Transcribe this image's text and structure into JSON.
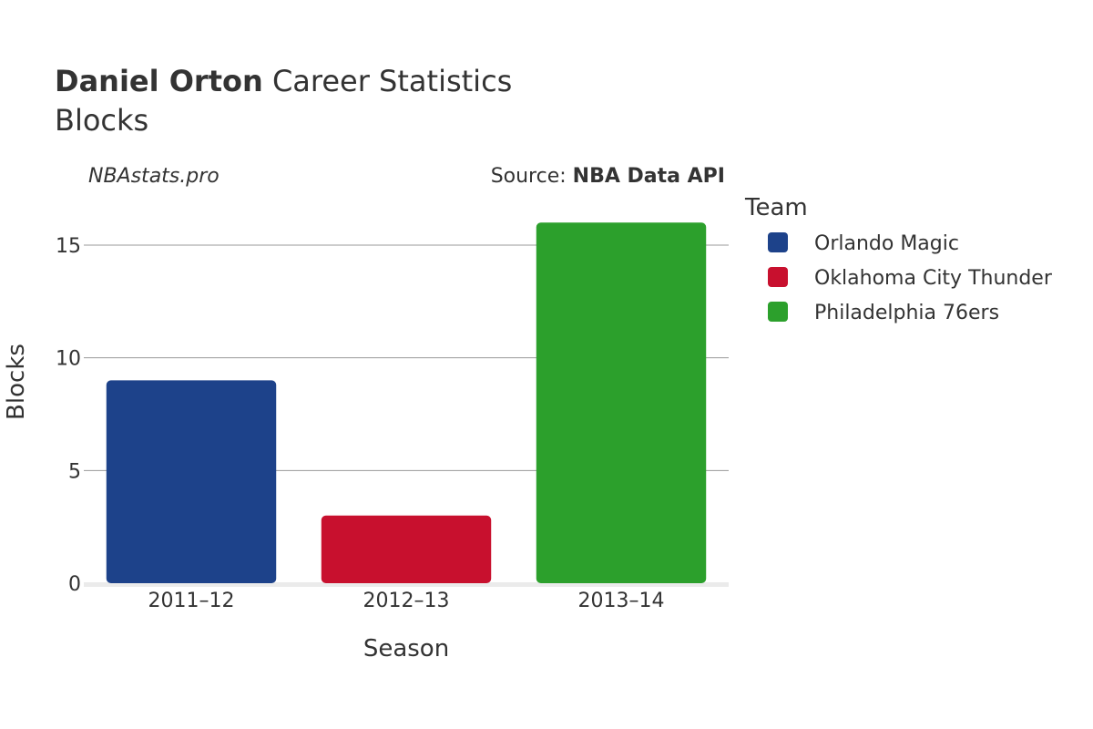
{
  "header": {
    "title_bold": "Daniel Orton",
    "title_rest": " Career Statistics",
    "subtitle": "Blocks"
  },
  "watermark": "NBAstats.pro",
  "source": {
    "prefix": "Source: ",
    "name": "NBA Data API"
  },
  "chart_data": {
    "type": "bar",
    "categories": [
      "2011–12",
      "2012–13",
      "2013–14"
    ],
    "values": [
      9,
      3,
      16
    ],
    "bar_teams": [
      "Orlando Magic",
      "Oklahoma City Thunder",
      "Philadelphia 76ers"
    ],
    "colors": [
      "#1d428a",
      "#c8102e",
      "#2ca02c"
    ],
    "xlabel": "Season",
    "ylabel": "Blocks",
    "ylim": [
      0,
      16.9
    ],
    "yticks": [
      0,
      5,
      10,
      15
    ],
    "grid": true,
    "legend": {
      "title": "Team",
      "placement": "right",
      "items": [
        {
          "name": "Orlando Magic",
          "color": "#1d428a"
        },
        {
          "name": "Oklahoma City Thunder",
          "color": "#c8102e"
        },
        {
          "name": "Philadelphia 76ers",
          "color": "#2ca02c"
        }
      ]
    }
  }
}
